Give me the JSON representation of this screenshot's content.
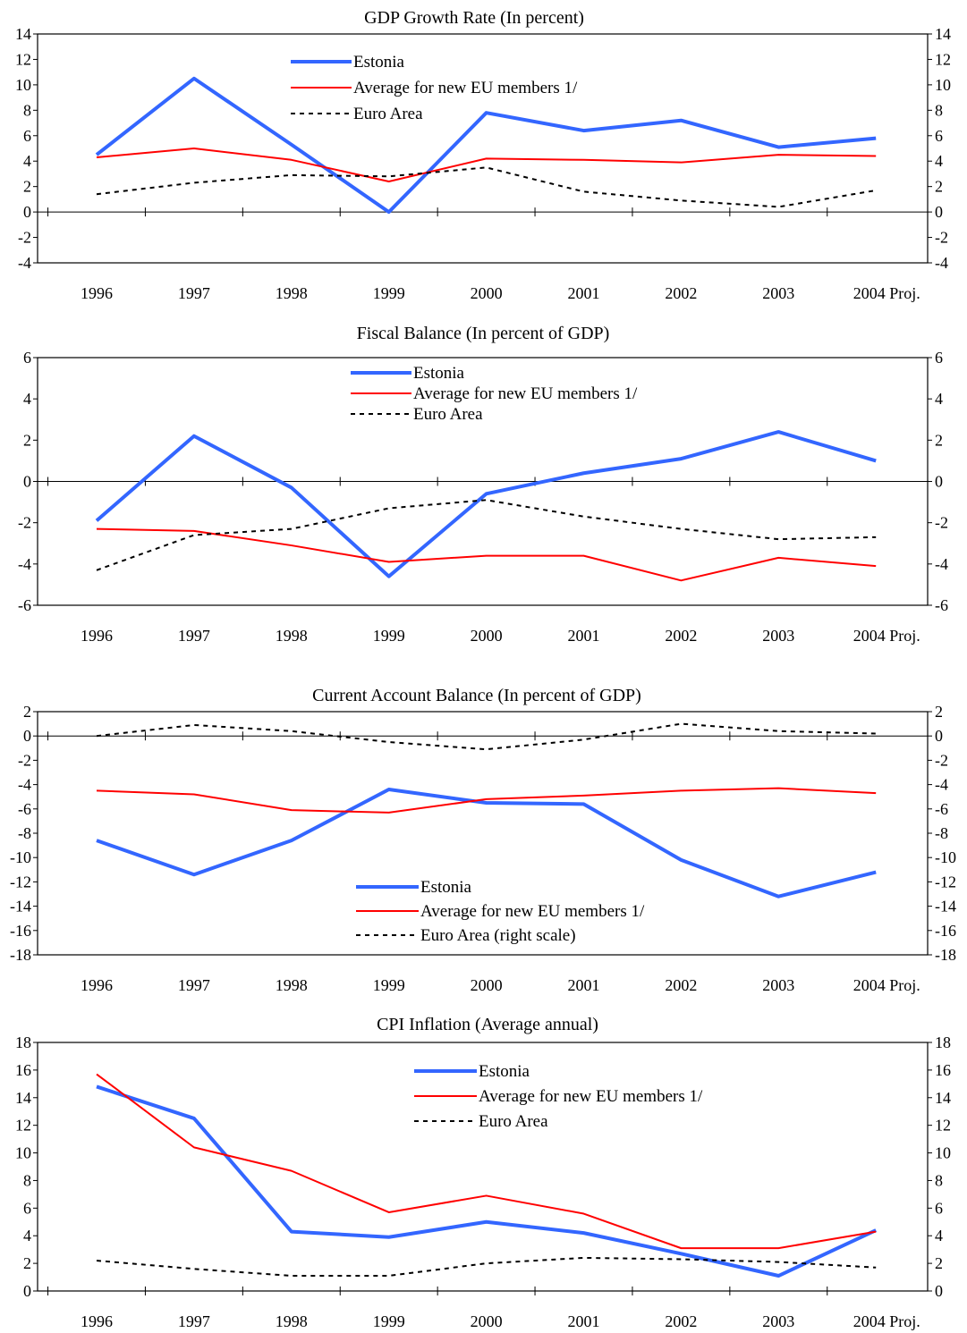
{
  "chart_data": [
    {
      "type": "line",
      "title": "GDP Growth Rate (In percent)",
      "categories": [
        "1996",
        "1997",
        "1998",
        "1999",
        "2000",
        "2001",
        "2002",
        "2003",
        "2004 Proj."
      ],
      "ylim": [
        -4,
        14
      ],
      "yticks": [
        -4,
        -2,
        0,
        2,
        4,
        6,
        8,
        10,
        12,
        14
      ],
      "right_axis": true,
      "legend_position": "top-center",
      "series": [
        {
          "name": "Estonia",
          "color": "#3366ff",
          "style": "solid-thick",
          "values": [
            4.5,
            10.5,
            5.3,
            0.0,
            7.8,
            6.4,
            7.2,
            5.1,
            5.8
          ]
        },
        {
          "name": "Average for new EU members 1/",
          "color": "#ff0000",
          "style": "solid",
          "values": [
            4.3,
            5.0,
            4.1,
            2.4,
            4.2,
            4.1,
            3.9,
            4.5,
            4.4
          ]
        },
        {
          "name": "Euro Area",
          "color": "#000000",
          "style": "dashed",
          "values": [
            1.4,
            2.3,
            2.9,
            2.8,
            3.5,
            1.6,
            0.9,
            0.4,
            1.7
          ]
        }
      ]
    },
    {
      "type": "line",
      "title": "Fiscal Balance (In percent of GDP)",
      "categories": [
        "1996",
        "1997",
        "1998",
        "1999",
        "2000",
        "2001",
        "2002",
        "2003",
        "2004 Proj."
      ],
      "ylim": [
        -6,
        6
      ],
      "yticks": [
        -6,
        -4,
        -2,
        0,
        2,
        4,
        6
      ],
      "right_axis": true,
      "legend_position": "top-center",
      "series": [
        {
          "name": "Estonia",
          "color": "#3366ff",
          "style": "solid-thick",
          "values": [
            -1.9,
            2.2,
            -0.3,
            -4.6,
            -0.6,
            0.4,
            1.1,
            2.4,
            1.0
          ]
        },
        {
          "name": "Average for new EU members 1/",
          "color": "#ff0000",
          "style": "solid",
          "values": [
            -2.3,
            -2.4,
            -3.1,
            -3.9,
            -3.6,
            -3.6,
            -4.8,
            -3.7,
            -4.1
          ]
        },
        {
          "name": "Euro Area",
          "color": "#000000",
          "style": "dashed",
          "values": [
            -4.3,
            -2.6,
            -2.3,
            -1.3,
            -0.9,
            -1.7,
            -2.3,
            -2.8,
            -2.7
          ]
        }
      ]
    },
    {
      "type": "line",
      "title": "Current Account Balance (In percent of GDP)",
      "categories": [
        "1996",
        "1997",
        "1998",
        "1999",
        "2000",
        "2001",
        "2002",
        "2003",
        "2004 Proj."
      ],
      "ylim": [
        -18,
        2
      ],
      "yticks": [
        -18,
        -16,
        -14,
        -12,
        -10,
        -8,
        -6,
        -4,
        -2,
        0,
        2
      ],
      "right_axis": true,
      "legend_position": "bottom-center",
      "series": [
        {
          "name": "Estonia",
          "color": "#3366ff",
          "style": "solid-thick",
          "values": [
            -8.6,
            -11.4,
            -8.6,
            -4.4,
            -5.5,
            -5.6,
            -10.2,
            -13.2,
            -11.2
          ]
        },
        {
          "name": "Average for new EU members 1/",
          "color": "#ff0000",
          "style": "solid",
          "values": [
            -4.5,
            -4.8,
            -6.1,
            -6.3,
            -5.2,
            -4.9,
            -4.5,
            -4.3,
            -4.7
          ]
        },
        {
          "name": "Euro Area (right scale)",
          "color": "#000000",
          "style": "dashed",
          "values": [
            0.0,
            0.9,
            0.4,
            -0.5,
            -1.1,
            -0.3,
            1.0,
            0.4,
            0.2
          ]
        }
      ]
    },
    {
      "type": "line",
      "title": "CPI Inflation (Average annual)",
      "categories": [
        "1996",
        "1997",
        "1998",
        "1999",
        "2000",
        "2001",
        "2002",
        "2003",
        "2004 Proj."
      ],
      "ylim": [
        0,
        18
      ],
      "yticks": [
        0,
        2,
        4,
        6,
        8,
        10,
        12,
        14,
        16,
        18
      ],
      "right_axis": true,
      "legend_position": "top-center",
      "series": [
        {
          "name": "Estonia",
          "color": "#3366ff",
          "style": "solid-thick",
          "values": [
            14.8,
            12.5,
            4.3,
            3.9,
            5.0,
            4.2,
            2.7,
            1.1,
            4.4
          ]
        },
        {
          "name": "Average for new EU members 1/",
          "color": "#ff0000",
          "style": "solid",
          "values": [
            15.7,
            10.4,
            8.7,
            5.7,
            6.9,
            5.6,
            3.1,
            3.1,
            4.3
          ]
        },
        {
          "name": "Euro Area",
          "color": "#000000",
          "style": "dashed",
          "values": [
            2.2,
            1.6,
            1.1,
            1.1,
            2.0,
            2.4,
            2.3,
            2.1,
            1.7
          ]
        }
      ]
    }
  ]
}
